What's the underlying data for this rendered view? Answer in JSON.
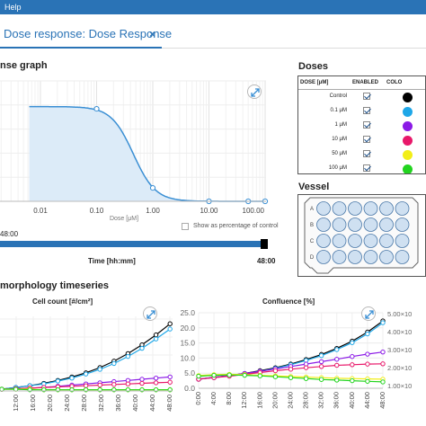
{
  "menubar": {
    "help_label": "Help"
  },
  "tab": {
    "label": "Dose response: Dose Response",
    "close_label": "×"
  },
  "dose_graph": {
    "title": "nse graph",
    "show_pct_label": "Show as percentage of control"
  },
  "doses": {
    "title": "Doses",
    "headers": {
      "dose": "DOSE [μM]",
      "enabled": "ENABLED",
      "color": "COLO"
    },
    "rows": [
      {
        "name": "Control",
        "color": "#000000"
      },
      {
        "name": "0.1 μM",
        "color": "#1ea7e8"
      },
      {
        "name": "1 μM",
        "color": "#8b1ae6"
      },
      {
        "name": "10 μM",
        "color": "#e8186a"
      },
      {
        "name": "50 μM",
        "color": "#f2ee18"
      },
      {
        "name": "100 μM",
        "color": "#22d41f"
      }
    ]
  },
  "vessel": {
    "title": "Vessel",
    "row_labels": [
      "A",
      "B",
      "C",
      "D"
    ]
  },
  "time": {
    "left_value": "48:00",
    "right_value": "48:00",
    "label": "Time [hh:mm]"
  },
  "morph": {
    "title": "morphology timeseries",
    "cell_count_title": "Cell count [#/cm²]",
    "confluence_title": "Confluence [%]"
  },
  "chart_data": [
    {
      "type": "line",
      "title": "",
      "xlabel": "Dose [μM]",
      "x_scale": "log",
      "x_ticks": [
        "0.01",
        "0.10",
        "1.00",
        "10.00",
        "100.00"
      ],
      "x": [
        0.1,
        1,
        10,
        50,
        100
      ],
      "values": [
        0.83,
        0.12,
        0.0,
        0.0,
        0.0
      ],
      "fill": "area",
      "color": "#3a8fd4"
    },
    {
      "type": "line",
      "title": "Cell count [#/cm²]",
      "x_ticks": [
        "12:00",
        "16:00",
        "20:00",
        "24:00",
        "28:00",
        "32:00",
        "36:00",
        "40:00",
        "44:00",
        "48:00"
      ],
      "x": [
        0,
        4,
        8,
        12,
        16,
        20,
        24,
        28,
        32,
        36,
        40,
        44,
        48
      ],
      "series": [
        {
          "color": "#000000",
          "values": [
            0.3,
            0.6,
            0.9,
            1.3,
            1.8,
            2.4,
            3.1,
            4.0,
            5.1,
            6.4,
            7.9,
            9.6,
            11.5
          ]
        },
        {
          "color": "#1ea7e8",
          "values": [
            0.3,
            0.6,
            0.9,
            1.2,
            1.7,
            2.2,
            2.9,
            3.7,
            4.7,
            5.9,
            7.3,
            8.9,
            10.6
          ]
        },
        {
          "color": "#8b1ae6",
          "values": [
            0.3,
            0.4,
            0.5,
            0.6,
            0.8,
            1.0,
            1.2,
            1.4,
            1.6,
            1.8,
            2.0,
            2.2,
            2.4
          ]
        },
        {
          "color": "#e8186a",
          "values": [
            0.3,
            0.4,
            0.5,
            0.6,
            0.7,
            0.8,
            0.9,
            1.0,
            1.1,
            1.2,
            1.3,
            1.4,
            1.5
          ]
        },
        {
          "color": "#f2ee18",
          "values": [
            0.3,
            0.3,
            0.3,
            0.2,
            0.2,
            0.2,
            0.2,
            0.2,
            0.2,
            0.2,
            0.2,
            0.2,
            0.2
          ]
        },
        {
          "color": "#22d41f",
          "values": [
            0.3,
            0.3,
            0.2,
            0.2,
            0.2,
            0.2,
            0.2,
            0.2,
            0.2,
            0.2,
            0.2,
            0.2,
            0.2
          ]
        }
      ]
    },
    {
      "type": "line",
      "title": "Confluence [%]",
      "y_ticks": [
        "0.0",
        "5.0",
        "10.0",
        "15.0",
        "20.0",
        "25.0"
      ],
      "ylim": [
        0,
        25
      ],
      "right_y_ticks": [
        "5.00×10",
        "4.00×10",
        "3.00×10",
        "2.00×10",
        "1.00×10"
      ],
      "x_ticks": [
        "0:00",
        "4:00",
        "8:00",
        "12:00",
        "16:00",
        "20:00",
        "24:00",
        "28:00",
        "32:00",
        "36:00",
        "40:00",
        "44:00",
        "48:00"
      ],
      "x": [
        0,
        4,
        8,
        12,
        16,
        20,
        24,
        28,
        32,
        36,
        40,
        44,
        48
      ],
      "series": [
        {
          "color": "#000000",
          "values": [
            3.0,
            3.6,
            4.2,
            4.9,
            5.8,
            6.8,
            8.0,
            9.5,
            11.2,
            13.2,
            15.6,
            18.6,
            22.3
          ]
        },
        {
          "color": "#1ea7e8",
          "values": [
            3.0,
            3.5,
            4.1,
            4.8,
            5.6,
            6.6,
            7.8,
            9.2,
            10.8,
            12.8,
            15.1,
            18.0,
            21.7
          ]
        },
        {
          "color": "#8b1ae6",
          "values": [
            3.0,
            3.6,
            4.2,
            4.9,
            5.6,
            6.4,
            7.2,
            8.0,
            8.8,
            9.6,
            10.5,
            11.3,
            12.0
          ]
        },
        {
          "color": "#e8186a",
          "values": [
            3.0,
            3.5,
            4.0,
            4.6,
            5.2,
            5.8,
            6.3,
            6.8,
            7.2,
            7.6,
            7.8,
            8.0,
            8.1
          ]
        },
        {
          "color": "#f2ee18",
          "values": [
            4.2,
            4.5,
            4.6,
            4.5,
            4.3,
            4.1,
            3.9,
            3.7,
            3.5,
            3.3,
            3.2,
            3.1,
            3.0
          ]
        },
        {
          "color": "#22d41f",
          "values": [
            4.0,
            4.3,
            4.4,
            4.3,
            4.1,
            3.8,
            3.5,
            3.2,
            2.9,
            2.7,
            2.5,
            2.3,
            2.1
          ]
        }
      ]
    }
  ]
}
